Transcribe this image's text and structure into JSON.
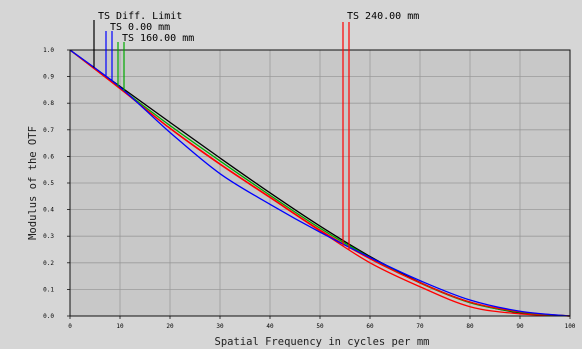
{
  "chart_data": {
    "type": "line",
    "title": "",
    "xlabel": "Spatial Frequency in cycles per mm",
    "ylabel": "Modulus of the OTF",
    "xlim": [
      0,
      100
    ],
    "ylim": [
      0,
      1.0
    ],
    "grid": true,
    "x_ticks": [
      "0",
      "10",
      "20",
      "30",
      "40",
      "50",
      "60",
      "70",
      "80",
      "90",
      "100"
    ],
    "y_ticks": [
      "0.0",
      "0.1",
      "0.2",
      "0.3",
      "0.4",
      "0.5",
      "0.6",
      "0.7",
      "0.8",
      "0.9",
      "1.0"
    ],
    "legend": [
      {
        "label": "TS Diff. Limit",
        "color": "#000000"
      },
      {
        "label": "TS 0.00 mm",
        "colors": [
          "#0000ff",
          "#0000ff"
        ]
      },
      {
        "label": "TS 160.00 mm",
        "colors": [
          "#00aa00",
          "#00aa00"
        ]
      },
      {
        "label": "TS 240.00 mm",
        "colors": [
          "#ff0000",
          "#ff0000"
        ]
      }
    ],
    "x": [
      0,
      10,
      20,
      30,
      40,
      50,
      60,
      70,
      80,
      90,
      100
    ],
    "series": [
      {
        "color": "#000000",
        "values": [
          1.0,
          0.863,
          0.728,
          0.594,
          0.463,
          0.338,
          0.224,
          0.126,
          0.052,
          0.012,
          0.0
        ]
      },
      {
        "color": "#ff0000",
        "values": [
          1.0,
          0.855,
          0.705,
          0.57,
          0.445,
          0.32,
          0.2,
          0.11,
          0.035,
          0.008,
          0.0
        ]
      },
      {
        "color": "#00aa00",
        "values": [
          1.0,
          0.857,
          0.716,
          0.583,
          0.454,
          0.33,
          0.22,
          0.124,
          0.05,
          0.014,
          0.0
        ]
      },
      {
        "color": "#ff0000",
        "values": [
          1.0,
          0.855,
          0.706,
          0.572,
          0.447,
          0.323,
          0.215,
          0.125,
          0.052,
          0.016,
          0.0
        ]
      },
      {
        "color": "#0000ff",
        "values": [
          1.0,
          0.86,
          0.69,
          0.535,
          0.42,
          0.315,
          0.22,
          0.133,
          0.06,
          0.018,
          0.0
        ]
      }
    ]
  }
}
